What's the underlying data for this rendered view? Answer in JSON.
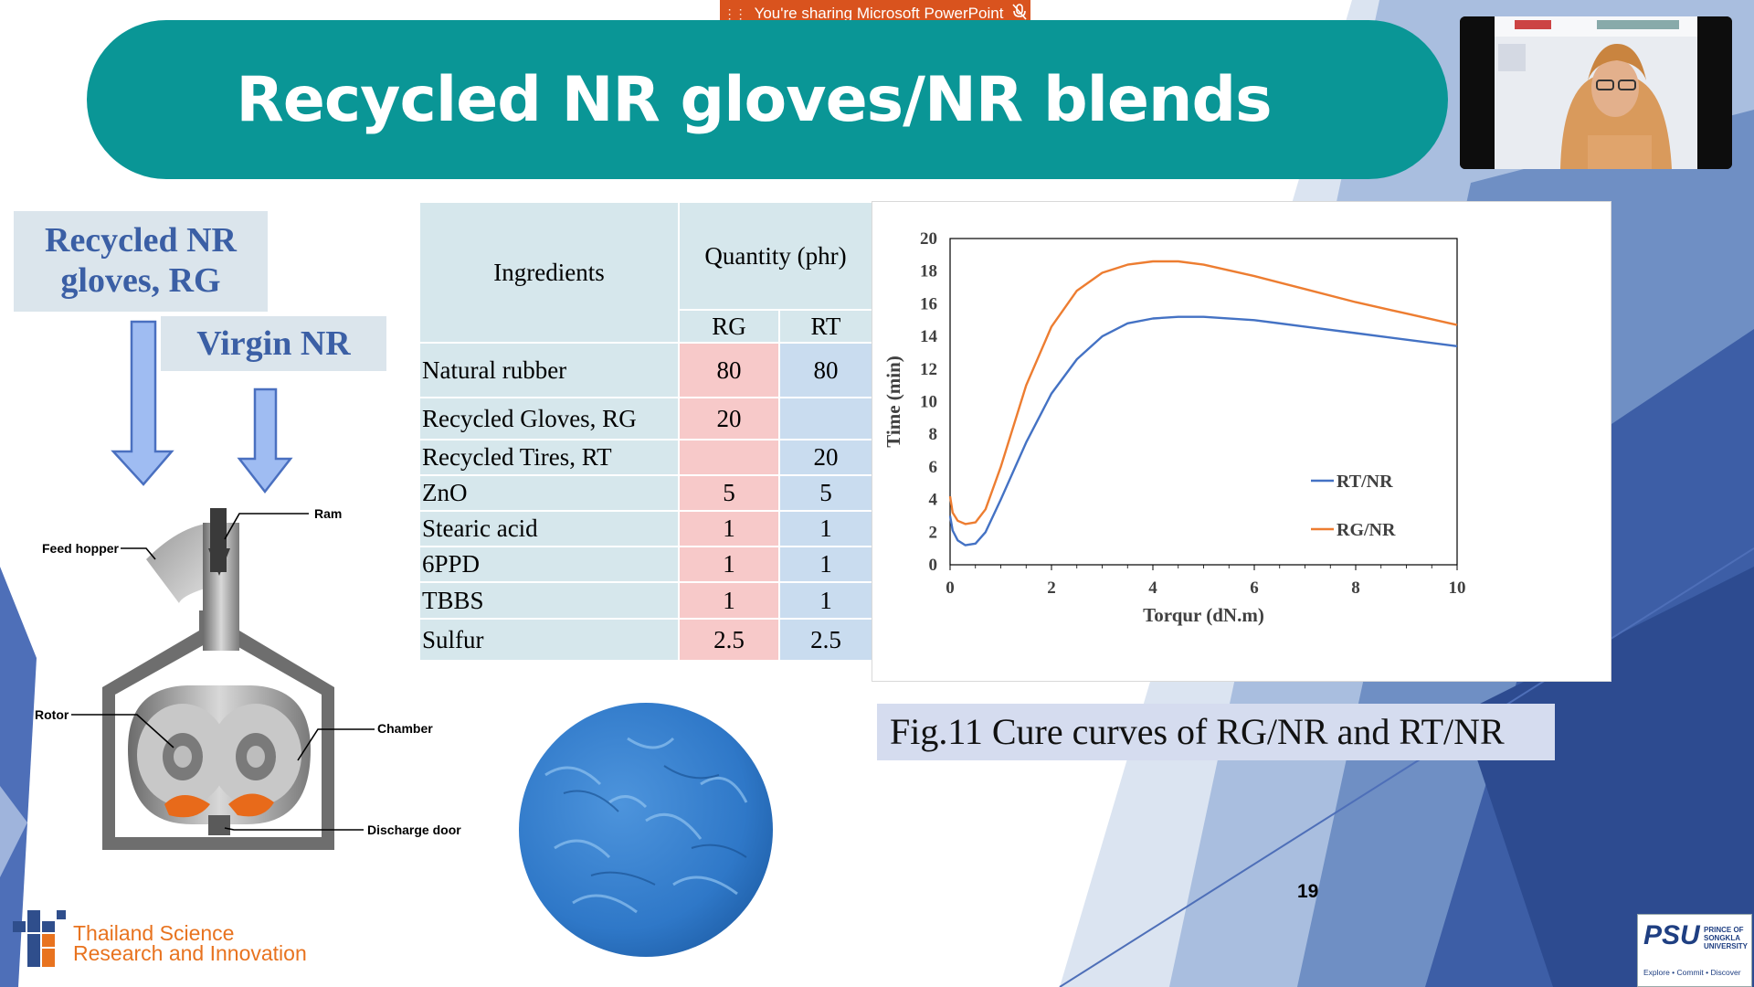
{
  "share_bar": {
    "text": "You're sharing Microsoft PowerPoint"
  },
  "slide": {
    "title": "Recycled NR gloves/NR blends",
    "label_rg": "Recycled NR gloves, RG",
    "label_vnr": "Virgin NR",
    "mixer_labels": {
      "ram": "Ram",
      "feed_hopper": "Feed hopper",
      "rotor": "Rotor",
      "chamber": "Chamber",
      "discharge_door": "Discharge door"
    },
    "table": {
      "header_ingredients": "Ingredients",
      "header_quantity": "Quantity (phr)",
      "col_rg": "RG",
      "col_rt": "RT",
      "rows": [
        {
          "name": "Natural rubber",
          "rg": "80",
          "rt": "80"
        },
        {
          "name": "Recycled Gloves, RG",
          "rg": "20",
          "rt": ""
        },
        {
          "name": "Recycled Tires, RT",
          "rg": "",
          "rt": "20"
        },
        {
          "name": "ZnO",
          "rg": "5",
          "rt": "5"
        },
        {
          "name": "Stearic acid",
          "rg": "1",
          "rt": "1"
        },
        {
          "name": "6PPD",
          "rg": "1",
          "rt": "1"
        },
        {
          "name": "TBBS",
          "rg": "1",
          "rt": "1"
        },
        {
          "name": "Sulfur",
          "rg": "2.5",
          "rt": "2.5"
        }
      ]
    },
    "caption": "Fig.11 Cure curves of RG/NR and RT/NR",
    "page_number": "19",
    "footer_logo_left": {
      "line1": "Thailand Science",
      "line2": "Research and Innovation"
    },
    "footer_logo_right": {
      "brand": "PSU",
      "line1": "PRINCE OF",
      "line2": "SONGKLA",
      "line3": "UNIVERSITY",
      "tagline": "Explore • Commit • Discover"
    }
  },
  "colors": {
    "title_bar": "#0a9696",
    "label_text": "#3b5fa5",
    "rg_cell": "#f7c9c9",
    "rt_cell": "#c9dcef",
    "series_rt": "#4472c4",
    "series_rg": "#ed7d31",
    "share_bar": "#d9531e"
  },
  "chart_data": {
    "type": "line",
    "title": "",
    "xlabel": "Torqur (dN.m)",
    "ylabel": "Time (min)",
    "xlim": [
      0,
      10
    ],
    "ylim": [
      0,
      20
    ],
    "xticks": [
      "0",
      "2",
      "4",
      "6",
      "8",
      "10"
    ],
    "yticks": [
      "0",
      "2",
      "4",
      "6",
      "8",
      "10",
      "12",
      "14",
      "16",
      "18",
      "20"
    ],
    "legend_position": "right",
    "series": [
      {
        "name": "RT/NR",
        "color": "#4472c4",
        "x": [
          0,
          0.05,
          0.15,
          0.3,
          0.5,
          0.7,
          1.0,
          1.5,
          2.0,
          2.5,
          3.0,
          3.5,
          4.0,
          4.5,
          5.0,
          6.0,
          7.0,
          8.0,
          9.0,
          10.0
        ],
        "y": [
          3.0,
          2.1,
          1.5,
          1.2,
          1.3,
          2.0,
          4.0,
          7.5,
          10.5,
          12.6,
          14.0,
          14.8,
          15.1,
          15.2,
          15.2,
          15.0,
          14.6,
          14.2,
          13.8,
          13.4
        ]
      },
      {
        "name": "RG/NR",
        "color": "#ed7d31",
        "x": [
          0,
          0.05,
          0.15,
          0.3,
          0.5,
          0.7,
          1.0,
          1.5,
          2.0,
          2.5,
          3.0,
          3.5,
          4.0,
          4.5,
          5.0,
          6.0,
          7.0,
          8.0,
          9.0,
          10.0
        ],
        "y": [
          4.2,
          3.2,
          2.7,
          2.5,
          2.6,
          3.4,
          6.0,
          11.0,
          14.6,
          16.8,
          17.9,
          18.4,
          18.6,
          18.6,
          18.4,
          17.7,
          16.9,
          16.1,
          15.4,
          14.7
        ]
      }
    ]
  }
}
